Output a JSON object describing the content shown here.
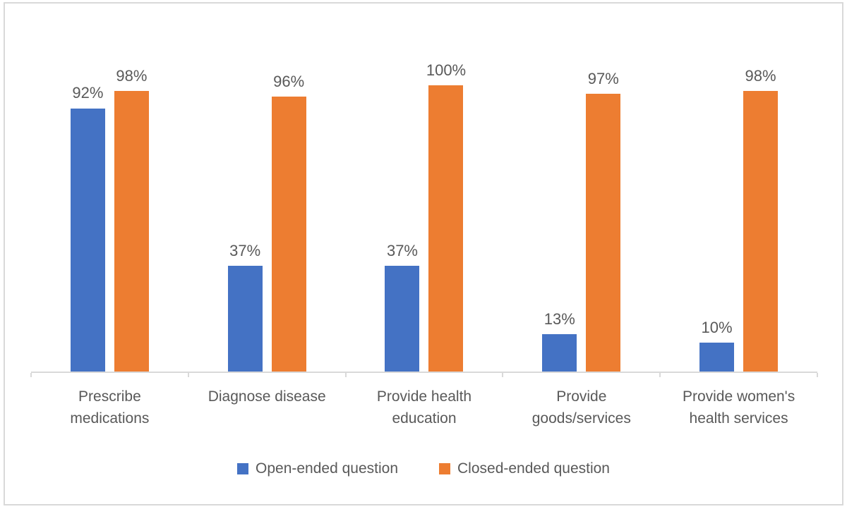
{
  "colors": {
    "series_blue": "#4472C4",
    "series_orange": "#ED7D31",
    "axis_line": "#D9D9D9",
    "frame_border": "#D9D9D9",
    "text_gray": "#595959"
  },
  "chart_data": {
    "type": "bar",
    "title": "",
    "xlabel": "",
    "ylabel": "",
    "ylim": [
      0,
      100
    ],
    "grid": false,
    "legend_position": "bottom",
    "value_unit": "%",
    "categories": [
      "Prescribe\nmedications",
      "Diagnose disease",
      "Provide health\neducation",
      "Provide\ngoods/services",
      "Provide women's\nhealth services"
    ],
    "series": [
      {
        "name": "Open-ended question",
        "color": "#4472C4",
        "values": [
          92,
          37,
          37,
          13,
          10
        ],
        "labels": [
          "92%",
          "37%",
          "37%",
          "13%",
          "10%"
        ]
      },
      {
        "name": "Closed-ended question",
        "color": "#ED7D31",
        "values": [
          98,
          96,
          100,
          97,
          98
        ],
        "labels": [
          "98%",
          "96%",
          "100%",
          "97%",
          "98%"
        ]
      }
    ]
  }
}
